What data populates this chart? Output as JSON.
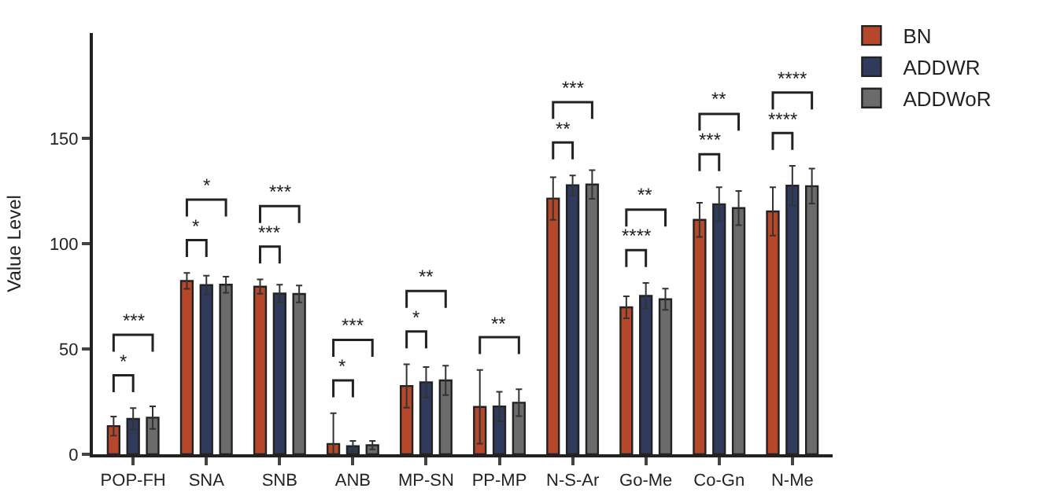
{
  "chart_data": {
    "type": "bar",
    "ylabel": "Value Level",
    "categories": [
      "POP-FH",
      "SNA",
      "SNB",
      "ANB",
      "MP-SN",
      "PP-MP",
      "N-S-Ar",
      "Go-Me",
      "Co-Gn",
      "N-Me"
    ],
    "series": [
      {
        "name": "BN",
        "color": "#b5472b",
        "values": [
          13.4,
          82.3,
          79.6,
          4.9,
          32.4,
          22.5,
          121.4,
          69.8,
          111.3,
          115.3
        ],
        "errors": [
          4.5,
          3.8,
          3.4,
          14.6,
          10.3,
          17.5,
          10.1,
          5.2,
          8.1,
          11.5
        ]
      },
      {
        "name": "ADDWR",
        "color": "#2f3a5c",
        "values": [
          16.8,
          80.3,
          76.3,
          3.8,
          34.2,
          22.7,
          127.7,
          75.2,
          118.7,
          127.5
        ],
        "errors": [
          5.1,
          4.5,
          4.2,
          2.5,
          7.2,
          7.0,
          4.7,
          6.1,
          8.1,
          9.4
        ]
      },
      {
        "name": "ADDWoR",
        "color": "#6b6b6b",
        "values": [
          17.4,
          80.5,
          76.1,
          4.3,
          35.1,
          24.5,
          128.1,
          73.6,
          116.9,
          127.3
        ],
        "errors": [
          5.4,
          3.8,
          4.0,
          2.0,
          7.0,
          6.4,
          6.8,
          5.0,
          8.1,
          8.3
        ]
      }
    ],
    "ylim": [
      0,
      200
    ],
    "yticks": [
      0,
      50,
      100,
      150
    ],
    "legend": "top right",
    "annotations": [
      "*",
      "***",
      "*",
      "*",
      "***",
      "***",
      "*",
      "***",
      "*",
      "**",
      "**",
      "**",
      "***",
      "****",
      "**",
      "***",
      "**",
      "****",
      "****"
    ]
  }
}
